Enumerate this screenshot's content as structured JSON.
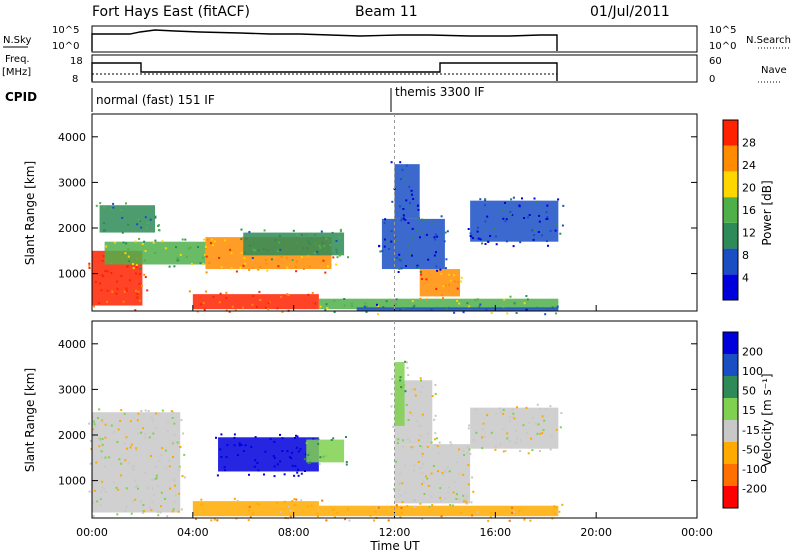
{
  "header": {
    "station": "Fort Hays East (fitACF)",
    "beam": "Beam 11",
    "date": "01/Jul/2011"
  },
  "nsky_panel": {
    "left_label": "N.Sky",
    "right_label": "N.Search",
    "left_ticks": [
      "10^5",
      "10^0"
    ],
    "right_ticks": [
      "10^5",
      "10^0"
    ]
  },
  "freq_panel": {
    "left_label_line1": "Freq.",
    "left_label_line2": "[MHz]",
    "right_label": "Nave",
    "left_ticks": [
      "18",
      "8"
    ],
    "right_ticks": [
      "60",
      "0"
    ]
  },
  "cpid": {
    "label": "CPID",
    "modes": [
      {
        "name": "normal (fast) 151 IF",
        "start_hour": 0
      },
      {
        "name": "themis 3300 IF",
        "start_hour": 12
      }
    ]
  },
  "x_axis": {
    "label": "Time UT",
    "tick_labels": [
      "00:00",
      "04:00",
      "08:00",
      "12:00",
      "16:00",
      "20:00",
      "00:00"
    ],
    "range_hours": [
      0,
      24
    ],
    "data_end_hour": 18.7
  },
  "power_panel": {
    "ylabel": "Slant Range [km]",
    "y_ticks": [
      "1000",
      "2000",
      "3000",
      "4000"
    ],
    "colorbar_label": "Power [dB]",
    "colorbar_ticks": [
      "28",
      "24",
      "20",
      "16",
      "12",
      "8",
      "4"
    ],
    "colors": [
      "#0000dd",
      "#1a4fc4",
      "#2e8b57",
      "#4fb04a",
      "#ffd700",
      "#ff8c00",
      "#ff2200"
    ]
  },
  "velocity_panel": {
    "ylabel": "Slant Range [km]",
    "y_ticks": [
      "1000",
      "2000",
      "3000",
      "4000"
    ],
    "colorbar_label": "Velocity [m s⁻¹]",
    "colorbar_ticks": [
      "200",
      "100",
      "50",
      "15",
      "-15",
      "-50",
      "-100",
      "-200"
    ],
    "colors": [
      "#0000dd",
      "#1a4fc4",
      "#2e8b57",
      "#7fd14f",
      "#c8c8c8",
      "#ffaa00",
      "#ff7000",
      "#ff0000"
    ]
  },
  "chart_data": {
    "type": "heatmap",
    "x_unit": "hours UT",
    "y_unit": "slant range km",
    "xlim": [
      0,
      24
    ],
    "ylim": [
      180,
      4500
    ],
    "power_regions": [
      {
        "t0": 0.0,
        "t1": 2.0,
        "r0": 300,
        "r1": 1500,
        "value_db": 28
      },
      {
        "t0": 0.5,
        "t1": 4.5,
        "r0": 1200,
        "r1": 1700,
        "value_db": 16
      },
      {
        "t0": 0.3,
        "t1": 2.5,
        "r0": 1900,
        "r1": 2500,
        "value_db": 12
      },
      {
        "t0": 4.5,
        "t1": 9.5,
        "r0": 1100,
        "r1": 1800,
        "value_db": 24
      },
      {
        "t0": 6.0,
        "t1": 10.0,
        "r0": 1400,
        "r1": 1900,
        "value_db": 12
      },
      {
        "t0": 4.0,
        "t1": 9.0,
        "r0": 220,
        "r1": 550,
        "value_db": 28
      },
      {
        "t0": 9.0,
        "t1": 18.5,
        "r0": 220,
        "r1": 450,
        "value_db": 16
      },
      {
        "t0": 10.5,
        "t1": 18.5,
        "r0": 180,
        "r1": 260,
        "value_db": 8
      },
      {
        "t0": 13.0,
        "t1": 14.6,
        "r0": 500,
        "r1": 1100,
        "value_db": 24
      },
      {
        "t0": 11.5,
        "t1": 14.0,
        "r0": 1100,
        "r1": 2200,
        "value_db": 8
      },
      {
        "t0": 15.0,
        "t1": 18.5,
        "r0": 1700,
        "r1": 2600,
        "value_db": 6
      },
      {
        "t0": 12.0,
        "t1": 13.0,
        "r0": 2200,
        "r1": 3400,
        "value_db": 6
      }
    ],
    "velocity_regions": [
      {
        "t0": 0.0,
        "t1": 3.5,
        "r0": 300,
        "r1": 2500,
        "value_ms": 0
      },
      {
        "t0": 5.0,
        "t1": 9.0,
        "r0": 1200,
        "r1": 1950,
        "value_ms": 200
      },
      {
        "t0": 8.5,
        "t1": 10.0,
        "r0": 1400,
        "r1": 1900,
        "value_ms": 30
      },
      {
        "t0": 4.0,
        "t1": 9.0,
        "r0": 220,
        "r1": 550,
        "value_ms": -30
      },
      {
        "t0": 9.0,
        "t1": 18.5,
        "r0": 220,
        "r1": 450,
        "value_ms": -40
      },
      {
        "t0": 12.0,
        "t1": 15.0,
        "r0": 500,
        "r1": 1800,
        "value_ms": 0
      },
      {
        "t0": 12.0,
        "t1": 13.5,
        "r0": 1800,
        "r1": 3200,
        "value_ms": 0
      },
      {
        "t0": 15.0,
        "t1": 18.5,
        "r0": 1700,
        "r1": 2600,
        "value_ms": 0
      },
      {
        "t0": 12.0,
        "t1": 12.4,
        "r0": 2200,
        "r1": 3600,
        "value_ms": 20
      }
    ]
  }
}
